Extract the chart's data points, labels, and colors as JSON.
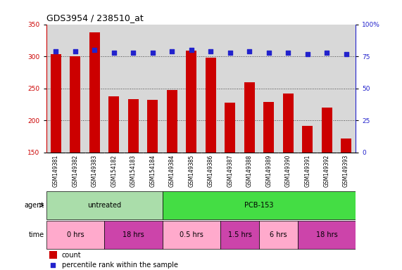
{
  "title": "GDS3954 / 238510_at",
  "samples": [
    "GSM149381",
    "GSM149382",
    "GSM149383",
    "GSM154182",
    "GSM154183",
    "GSM154184",
    "GSM149384",
    "GSM149385",
    "GSM149386",
    "GSM149387",
    "GSM149388",
    "GSM149389",
    "GSM149390",
    "GSM149391",
    "GSM149392",
    "GSM149393"
  ],
  "counts": [
    303,
    300,
    338,
    238,
    233,
    232,
    248,
    309,
    298,
    228,
    260,
    229,
    242,
    192,
    220,
    172
  ],
  "percentile_ranks": [
    79,
    79,
    80,
    78,
    78,
    78,
    79,
    80,
    79,
    78,
    79,
    78,
    78,
    77,
    78,
    77
  ],
  "ylim_left": [
    150,
    350
  ],
  "ylim_right": [
    0,
    100
  ],
  "yticks_left": [
    150,
    200,
    250,
    300,
    350
  ],
  "yticks_right": [
    0,
    25,
    50,
    75,
    100
  ],
  "bar_color": "#cc0000",
  "dot_color": "#2222cc",
  "bar_bottom": 150,
  "chart_bg": "#d8d8d8",
  "sample_bg": "#c8c8c8",
  "agent_groups": [
    {
      "label": "untreated",
      "start": 0,
      "end": 6,
      "color": "#aaddaa"
    },
    {
      "label": "PCB-153",
      "start": 6,
      "end": 16,
      "color": "#44dd44"
    }
  ],
  "time_groups": [
    {
      "label": "0 hrs",
      "start": 0,
      "end": 3,
      "color": "#ffaacc"
    },
    {
      "label": "18 hrs",
      "start": 3,
      "end": 6,
      "color": "#cc44aa"
    },
    {
      "label": "0.5 hrs",
      "start": 6,
      "end": 9,
      "color": "#ffaacc"
    },
    {
      "label": "1.5 hrs",
      "start": 9,
      "end": 11,
      "color": "#cc44aa"
    },
    {
      "label": "6 hrs",
      "start": 11,
      "end": 13,
      "color": "#ffaacc"
    },
    {
      "label": "18 hrs",
      "start": 13,
      "end": 16,
      "color": "#cc44aa"
    }
  ],
  "agent_label": "agent",
  "time_label": "time",
  "legend_count_label": "count",
  "legend_pct_label": "percentile rank within the sample",
  "right_axis_color": "#2222cc",
  "left_axis_color": "#cc0000",
  "grid_color": "#444444",
  "title_fontsize": 9,
  "tick_fontsize": 6.5,
  "label_fontsize": 7,
  "row_label_fontsize": 7
}
